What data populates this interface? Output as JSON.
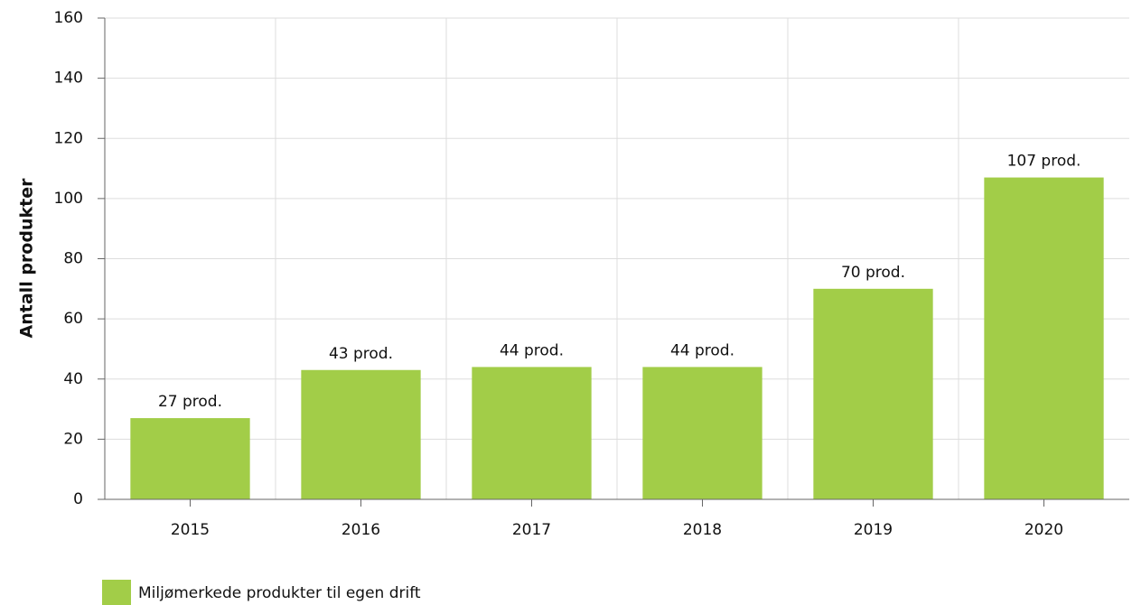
{
  "chart_data": {
    "type": "bar",
    "y_label": "Antall produkter",
    "categories": [
      "2015",
      "2016",
      "2017",
      "2018",
      "2019",
      "2020"
    ],
    "series": [
      {
        "name": "Miljømerkede produkter til egen drift",
        "color": "#a2cd48",
        "values": [
          27,
          43,
          44,
          44,
          70,
          107
        ],
        "value_labels": [
          "27 prod.",
          "43 prod.",
          "44 prod.",
          "44 prod.",
          "70 prod.",
          "107 prod."
        ]
      }
    ],
    "ylim": [
      0,
      160
    ],
    "yticks": [
      0,
      20,
      40,
      60,
      80,
      100,
      120,
      140,
      160
    ],
    "grid": true
  }
}
